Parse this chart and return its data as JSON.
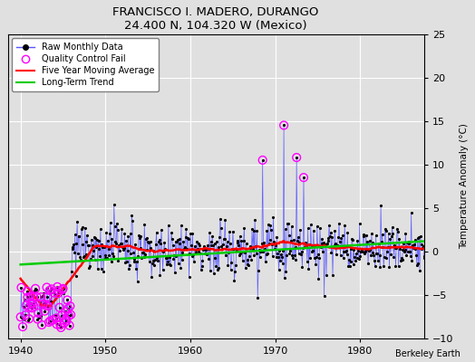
{
  "title": "FRANCISCO I. MADERO, DURANGO",
  "subtitle": "24.400 N, 104.320 W (Mexico)",
  "ylabel": "Temperature Anomaly (°C)",
  "credit": "Berkeley Earth",
  "xlim": [
    1938.5,
    1987.5
  ],
  "ylim": [
    -10,
    25
  ],
  "yticks": [
    -10,
    -5,
    0,
    5,
    10,
    15,
    20,
    25
  ],
  "xticks": [
    1940,
    1950,
    1960,
    1970,
    1980
  ],
  "background_color": "#e0e0e0",
  "grid_color": "#ffffff",
  "raw_color": "#5555ff",
  "moving_avg_color": "#ff0000",
  "trend_color": "#00cc00",
  "qc_fail_color": "#ff00ff",
  "seed": 123,
  "years_start": 1940,
  "years_end": 1987
}
